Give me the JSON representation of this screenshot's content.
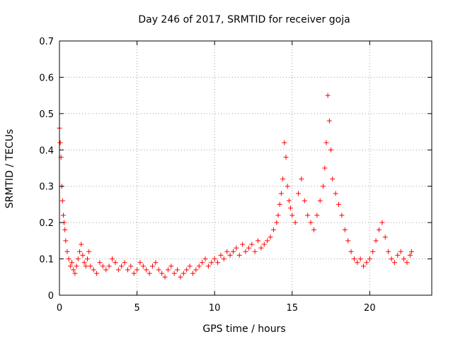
{
  "chart_data": {
    "type": "scatter",
    "title": "Day 246 of 2017, SRMTID for receiver goja",
    "xlabel": "GPS time / hours",
    "ylabel": "SRMTID / TECUs",
    "xlim": [
      0,
      24
    ],
    "ylim": [
      0,
      0.7
    ],
    "x_ticks": [
      0,
      5,
      10,
      15,
      20
    ],
    "x_tick_labels": [
      "0",
      "5",
      "10",
      "15",
      "20"
    ],
    "y_ticks": [
      0,
      0.1,
      0.2,
      0.3,
      0.4,
      0.5,
      0.6,
      0.7
    ],
    "y_tick_labels": [
      "0",
      "0.1",
      "0.2",
      "0.3",
      "0.4",
      "0.5",
      "0.6",
      "0.7"
    ],
    "grid": true,
    "marker": "+",
    "color": "#ff0000",
    "series": [
      {
        "name": "SRMTID",
        "x": [
          0.0,
          0.05,
          0.1,
          0.15,
          0.2,
          0.25,
          0.3,
          0.35,
          0.4,
          0.5,
          0.6,
          0.7,
          0.8,
          0.9,
          1.0,
          1.1,
          1.2,
          1.3,
          1.4,
          1.5,
          1.6,
          1.7,
          1.8,
          1.9,
          2.0,
          2.2,
          2.4,
          2.6,
          2.8,
          3.0,
          3.2,
          3.4,
          3.6,
          3.8,
          4.0,
          4.2,
          4.4,
          4.6,
          4.8,
          5.0,
          5.2,
          5.4,
          5.6,
          5.8,
          6.0,
          6.2,
          6.4,
          6.6,
          6.8,
          7.0,
          7.2,
          7.4,
          7.6,
          7.8,
          8.0,
          8.2,
          8.4,
          8.6,
          8.8,
          9.0,
          9.2,
          9.4,
          9.6,
          9.8,
          10.0,
          10.2,
          10.4,
          10.6,
          10.8,
          11.0,
          11.2,
          11.4,
          11.6,
          11.8,
          12.0,
          12.2,
          12.4,
          12.6,
          12.8,
          13.0,
          13.2,
          13.4,
          13.6,
          13.8,
          14.0,
          14.1,
          14.2,
          14.3,
          14.4,
          14.5,
          14.6,
          14.7,
          14.8,
          14.9,
          15.0,
          15.2,
          15.4,
          15.6,
          15.8,
          16.0,
          16.2,
          16.4,
          16.6,
          16.8,
          17.0,
          17.1,
          17.2,
          17.3,
          17.4,
          17.5,
          17.6,
          17.8,
          18.0,
          18.2,
          18.4,
          18.6,
          18.8,
          19.0,
          19.2,
          19.4,
          19.6,
          19.8,
          20.0,
          20.2,
          20.4,
          20.6,
          20.8,
          21.0,
          21.2,
          21.4,
          21.6,
          21.8,
          22.0,
          22.2,
          22.4,
          22.6,
          22.7
        ],
        "y": [
          0.46,
          0.42,
          0.38,
          0.3,
          0.26,
          0.22,
          0.2,
          0.18,
          0.15,
          0.12,
          0.1,
          0.08,
          0.09,
          0.07,
          0.06,
          0.08,
          0.1,
          0.12,
          0.14,
          0.11,
          0.09,
          0.08,
          0.1,
          0.12,
          0.08,
          0.07,
          0.06,
          0.09,
          0.08,
          0.07,
          0.08,
          0.1,
          0.09,
          0.07,
          0.08,
          0.09,
          0.07,
          0.08,
          0.06,
          0.07,
          0.09,
          0.08,
          0.07,
          0.06,
          0.08,
          0.09,
          0.07,
          0.06,
          0.05,
          0.07,
          0.08,
          0.06,
          0.07,
          0.05,
          0.06,
          0.07,
          0.08,
          0.06,
          0.07,
          0.08,
          0.09,
          0.1,
          0.08,
          0.09,
          0.1,
          0.09,
          0.11,
          0.1,
          0.12,
          0.11,
          0.12,
          0.13,
          0.11,
          0.14,
          0.12,
          0.13,
          0.14,
          0.12,
          0.15,
          0.13,
          0.14,
          0.15,
          0.16,
          0.18,
          0.2,
          0.22,
          0.25,
          0.28,
          0.32,
          0.42,
          0.38,
          0.3,
          0.26,
          0.24,
          0.22,
          0.2,
          0.28,
          0.32,
          0.26,
          0.22,
          0.2,
          0.18,
          0.22,
          0.26,
          0.3,
          0.35,
          0.42,
          0.55,
          0.48,
          0.4,
          0.32,
          0.28,
          0.25,
          0.22,
          0.18,
          0.15,
          0.12,
          0.1,
          0.09,
          0.1,
          0.08,
          0.09,
          0.1,
          0.12,
          0.15,
          0.18,
          0.2,
          0.16,
          0.12,
          0.1,
          0.09,
          0.11,
          0.12,
          0.1,
          0.09,
          0.11,
          0.12
        ]
      }
    ]
  }
}
